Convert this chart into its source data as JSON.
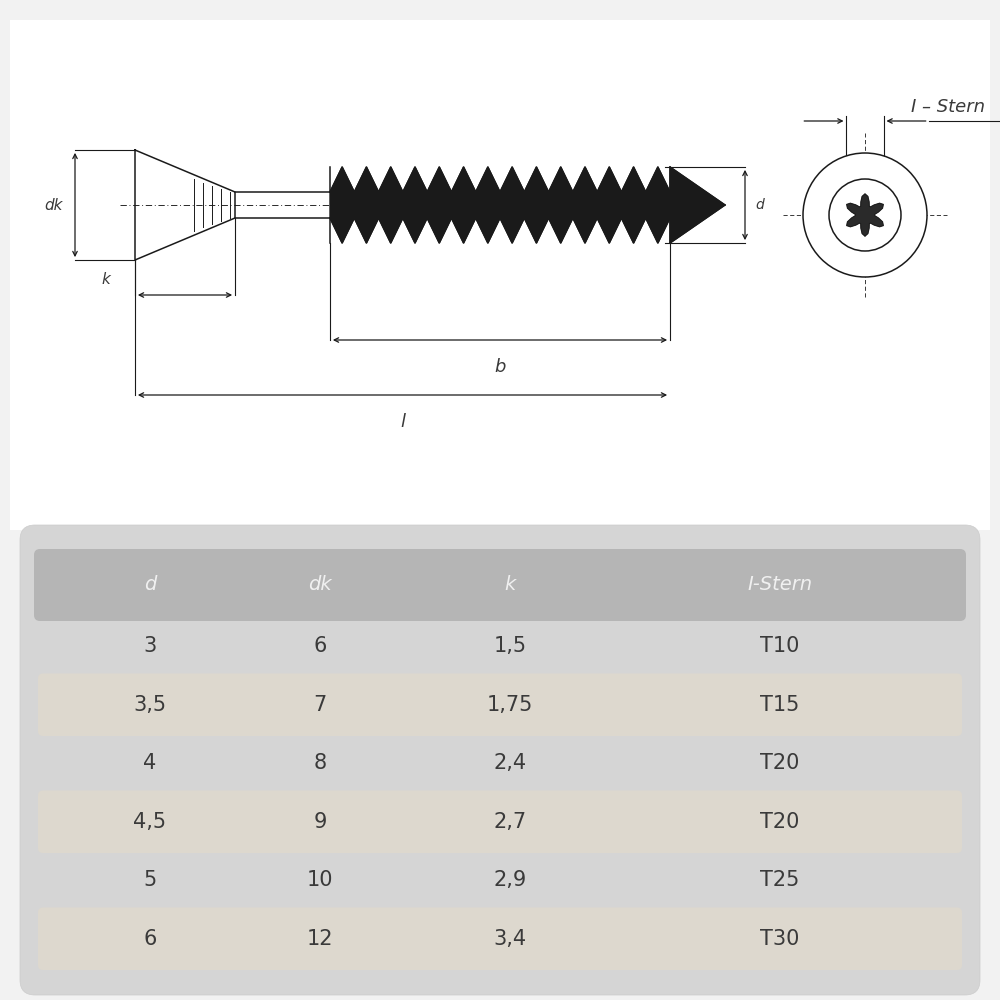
{
  "bg_color": "#f2f2f2",
  "drawing_bg": "#ffffff",
  "table_outer_bg": "#d8d8d8",
  "header_color": "#b8b8b8",
  "row_alt_color": "#e8e3da",
  "text_color": "#3a3a3a",
  "line_color": "#1a1a1a",
  "table_headers": [
    "d",
    "dk",
    "k",
    "I-Stern"
  ],
  "table_rows": [
    [
      "3",
      "6",
      "1,5",
      "T10"
    ],
    [
      "3,5",
      "7",
      "1,75",
      "T15"
    ],
    [
      "4",
      "8",
      "2,4",
      "T20"
    ],
    [
      "4,5",
      "9",
      "2,7",
      "T20"
    ],
    [
      "5",
      "10",
      "2,9",
      "T25"
    ],
    [
      "6",
      "12",
      "3,4",
      "T30"
    ]
  ],
  "label_istern": "I – Stern",
  "label_dk": "dk",
  "label_k": "k",
  "label_b": "b",
  "label_l": "l",
  "label_d": "d"
}
